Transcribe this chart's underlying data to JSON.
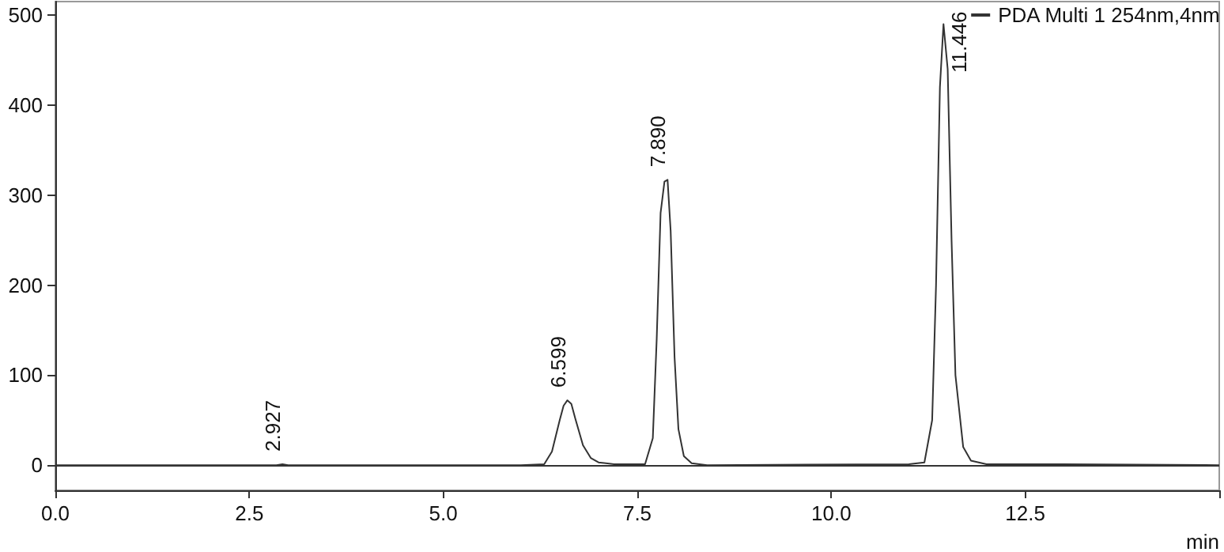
{
  "chart_data": {
    "type": "line",
    "xlabel": "min",
    "x": [
      0,
      2.0,
      2.85,
      2.927,
      3.0,
      3.5,
      6.0,
      6.3,
      6.4,
      6.5,
      6.55,
      6.599,
      6.65,
      6.7,
      6.8,
      6.9,
      7.0,
      7.2,
      7.6,
      7.7,
      7.75,
      7.8,
      7.85,
      7.89,
      7.93,
      7.98,
      8.03,
      8.1,
      8.2,
      8.4,
      11.0,
      11.2,
      11.3,
      11.35,
      11.4,
      11.446,
      11.5,
      11.55,
      11.6,
      11.7,
      11.8,
      12.0,
      13.0,
      15
    ],
    "series": [
      {
        "name": "PDA Multi 1 254nm,4nm",
        "color": "#333333",
        "values": [
          0,
          0,
          0,
          1,
          0,
          0,
          0,
          1,
          15,
          50,
          66,
          72,
          68,
          52,
          22,
          8,
          3,
          1,
          1,
          30,
          140,
          280,
          315,
          317,
          260,
          120,
          40,
          10,
          2,
          0,
          1,
          3,
          50,
          200,
          420,
          490,
          440,
          250,
          100,
          20,
          5,
          1,
          1,
          0
        ]
      }
    ],
    "annotations": [
      {
        "text": "2.927",
        "x": 2.927,
        "y": 1
      },
      {
        "text": "6.599",
        "x": 6.599,
        "y": 72
      },
      {
        "text": "7.890",
        "x": 7.89,
        "y": 317
      },
      {
        "text": "11.446",
        "x": 11.446,
        "y": 490
      }
    ],
    "xlim": [
      0,
      15
    ],
    "xticks": [
      {
        "value": 0,
        "label": "0.0"
      },
      2.5,
      {
        "value": 5,
        "label": "5.0"
      },
      7.5,
      {
        "value": 10,
        "label": "10.0"
      },
      12.5,
      {
        "value": 15,
        "label": null
      }
    ],
    "ylim": [
      -28,
      515
    ],
    "yticks": [
      0,
      100,
      200,
      300,
      400,
      500
    ],
    "ref_lines": [
      {
        "axis": "y",
        "value": 0,
        "color": "#333333"
      }
    ],
    "grid": false,
    "legend": "top right",
    "marker": "none",
    "line_style": "solid"
  }
}
